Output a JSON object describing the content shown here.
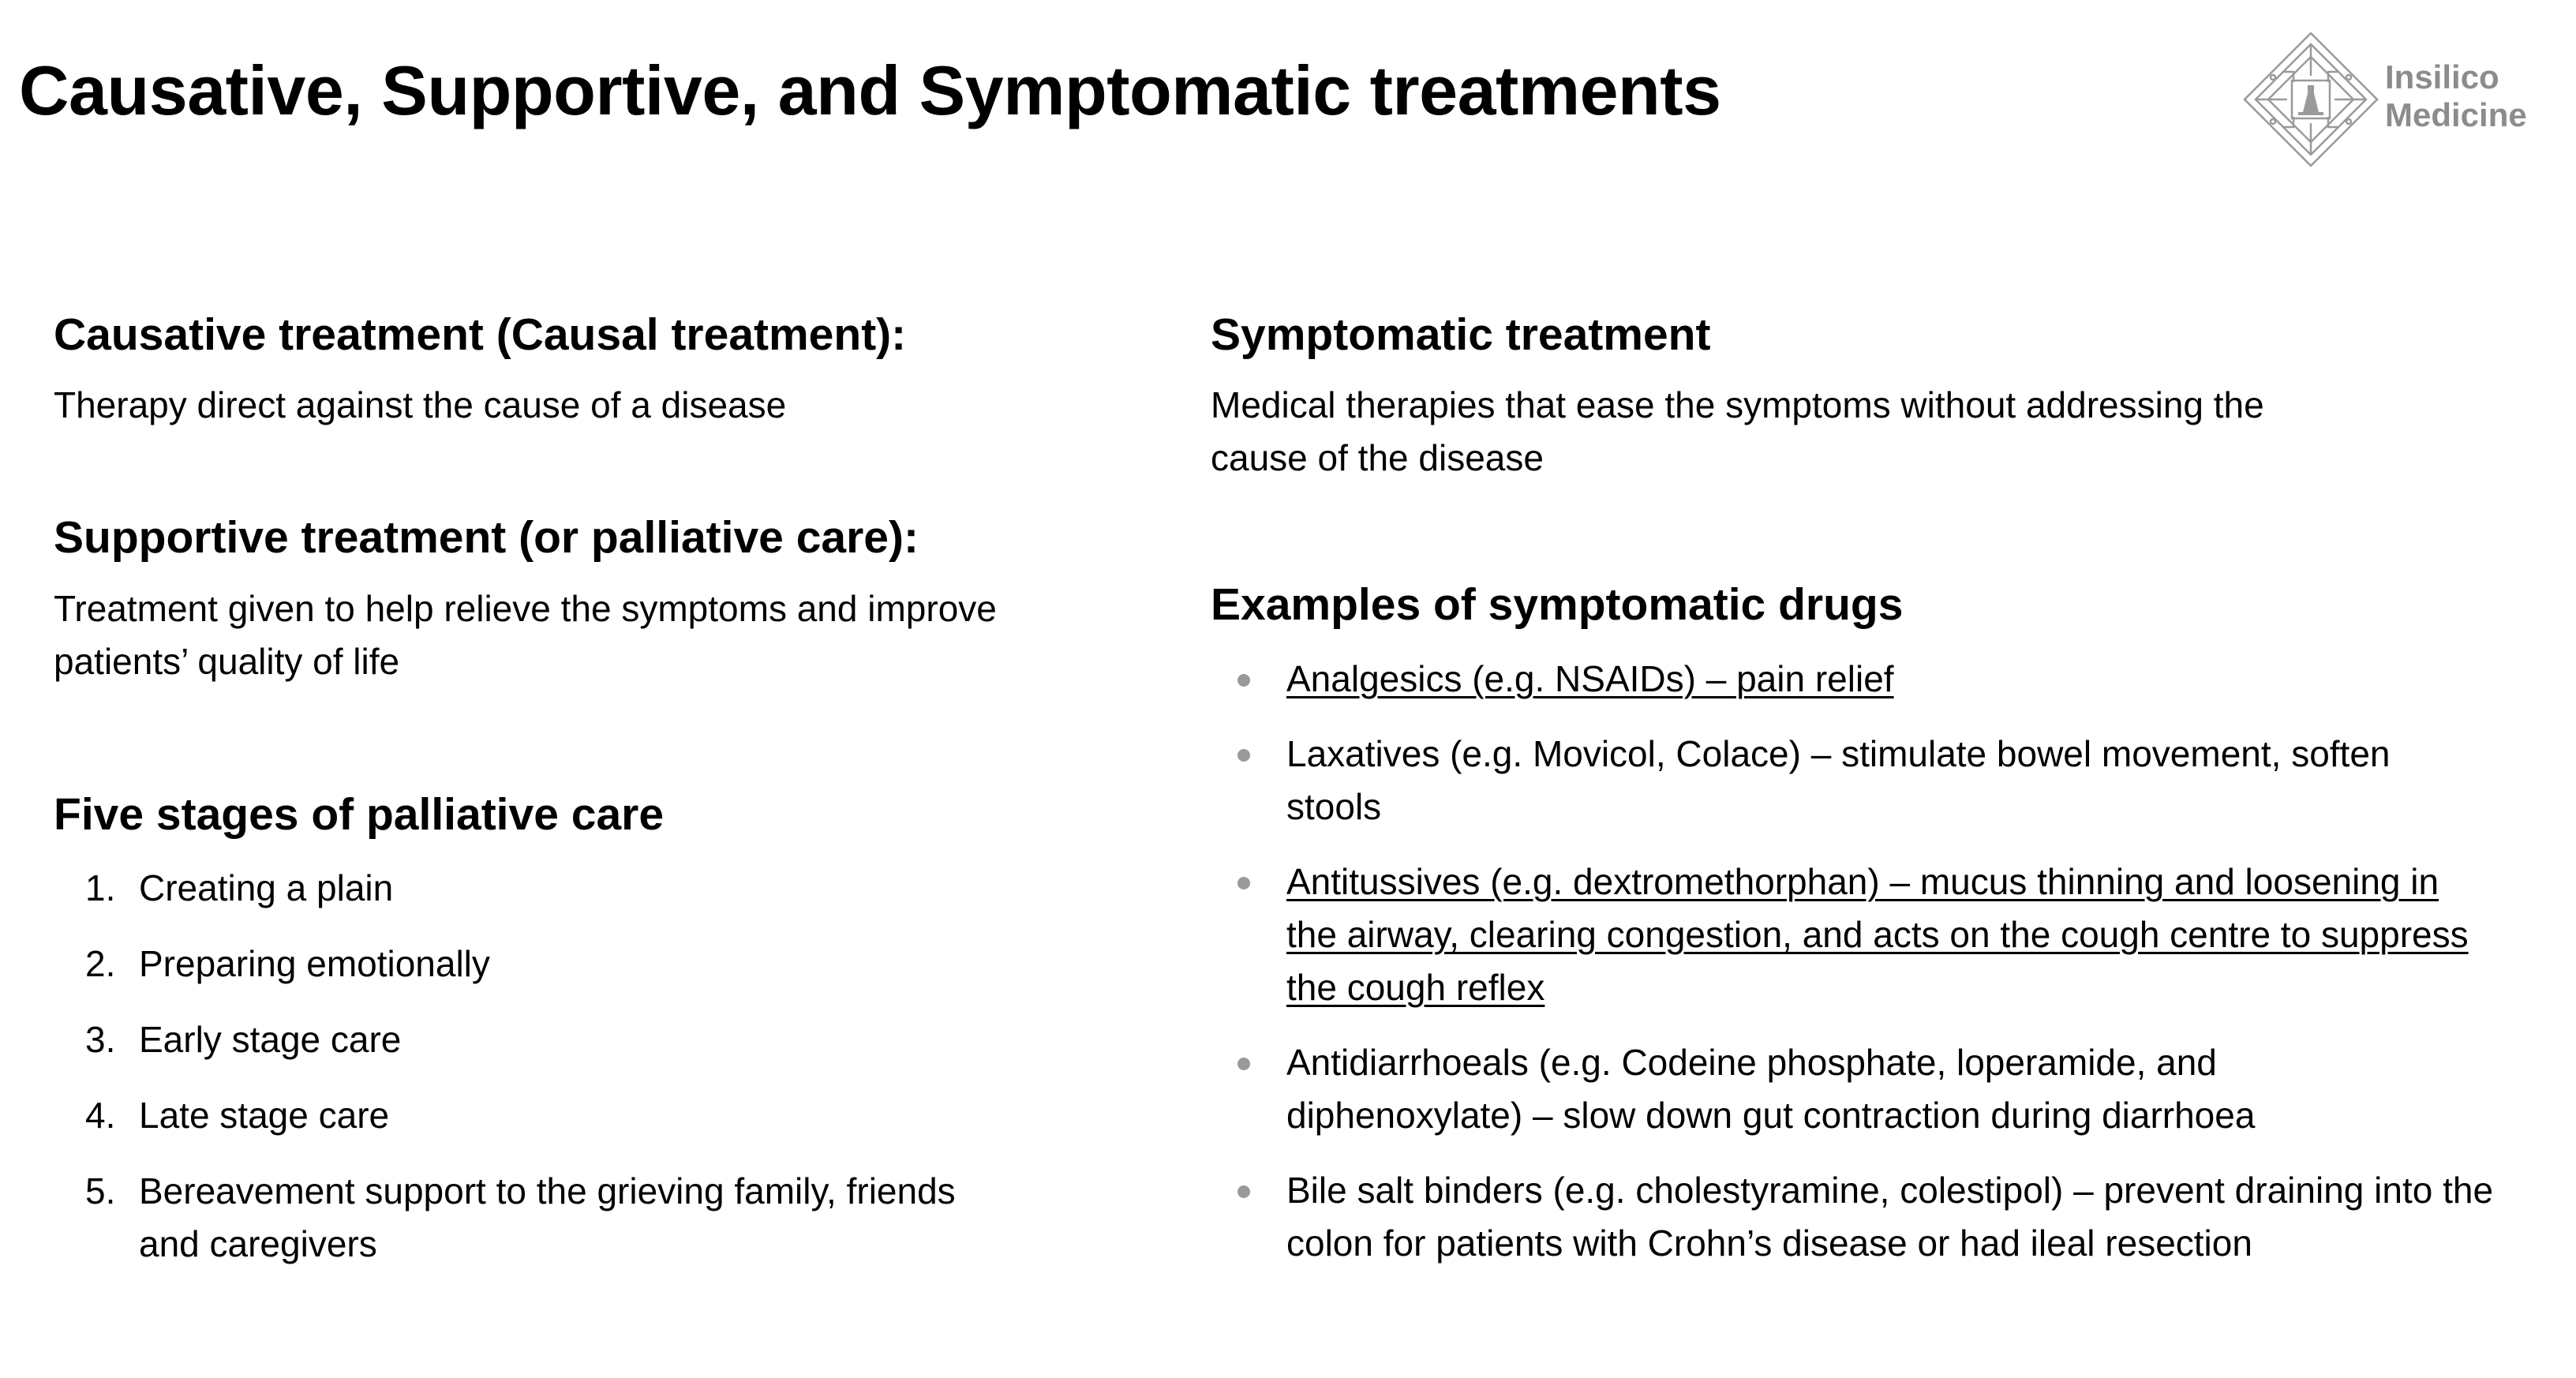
{
  "title": "Causative, Supportive, and Symptomatic treatments",
  "logo": {
    "line1": "Insilico",
    "line2": "Medicine",
    "icon": "insilico-diamond-logo"
  },
  "causative": {
    "heading_bold": "Causative treatment",
    "heading_rest": " (Causal treatment):",
    "body": "Therapy direct against the cause of a disease"
  },
  "supportive": {
    "heading_bold": "Supportive treatment",
    "heading_rest": " (or palliative care):",
    "body": "Treatment given to help relieve the symptoms and improve patients’ quality of life"
  },
  "stages": {
    "heading": "Five stages of palliative care",
    "items": [
      {
        "num": "1.",
        "text": "Creating a plain"
      },
      {
        "num": "2.",
        "text": "Preparing emotionally"
      },
      {
        "num": "3.",
        "text": "Early stage care"
      },
      {
        "num": "4.",
        "text": "Late stage care"
      },
      {
        "num": "5.",
        "text": "Bereavement support to the grieving family, friends and caregivers"
      }
    ]
  },
  "symptomatic": {
    "heading": "Symptomatic treatment",
    "body": "Medical therapies that ease the symptoms without addressing the cause of the disease"
  },
  "examples": {
    "heading": "Examples of symptomatic drugs",
    "items": [
      {
        "text": "Analgesics (e.g. NSAIDs) – pain relief",
        "underlined": true
      },
      {
        "text": "Laxatives (e.g. Movicol, Colace) – stimulate bowel movement, soften stools",
        "underlined": false
      },
      {
        "text": "Antitussives (e.g. dextromethorphan) – mucus thinning and loosening in the airway, clearing congestion, and acts on the cough centre to suppress the cough reflex",
        "underlined": true
      },
      {
        "text": "Antidiarrhoeals (e.g. Codeine phosphate, loperamide, and diphenoxylate) – slow down gut contraction during diarrhoea",
        "underlined": false
      },
      {
        "text": "Bile salt binders (e.g. cholestyramine, colestipol) – prevent draining into the colon for patients with Crohn’s disease or had ileal resection",
        "underlined": false
      }
    ]
  },
  "colors": {
    "text": "#000000",
    "bullet": "#9a9a9a",
    "logo": "#8c8c8c"
  }
}
